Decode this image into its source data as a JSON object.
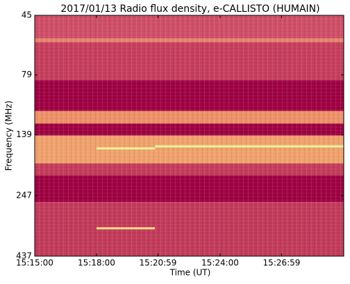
{
  "chart_data": {
    "type": "spectrogram",
    "title": "2017/01/13  Radio flux density, e-CALLISTO (HUMAIN)",
    "x_label": "Time (UT)",
    "y_label": "Frequency (MHz)",
    "xlim": [
      54900,
      55800
    ],
    "xticks": [
      {
        "value": 54900,
        "label": "15:15:00"
      },
      {
        "value": 55080,
        "label": "15:18:00"
      },
      {
        "value": 55259,
        "label": "15:20:59"
      },
      {
        "value": 55440,
        "label": "15:24:00"
      },
      {
        "value": 55619,
        "label": "15:26:59"
      }
    ],
    "ylim": [
      45,
      437
    ],
    "yticks": [
      45,
      79,
      139,
      247,
      437
    ],
    "y_log": true,
    "y_inverted": true,
    "bands": [
      {
        "from": 45,
        "to": 56,
        "color": "#cf4d66"
      },
      {
        "from": 56,
        "to": 58,
        "color": "#e6826a"
      },
      {
        "from": 58,
        "to": 83,
        "color": "#c63d5c"
      },
      {
        "from": 83,
        "to": 111,
        "color": "#9e0142"
      },
      {
        "from": 111,
        "to": 125,
        "color": "#ee9068"
      },
      {
        "from": 125,
        "to": 140,
        "color": "#9e0142"
      },
      {
        "from": 140,
        "to": 182,
        "color": "#f0a06c"
      },
      {
        "from": 182,
        "to": 204,
        "color": "#c43b5b"
      },
      {
        "from": 204,
        "to": 262,
        "color": "#9e0142"
      },
      {
        "from": 262,
        "to": 437,
        "color": "#c23a5a"
      }
    ],
    "bursts": [
      {
        "start": 55080,
        "end": 55250,
        "freq": 158,
        "color": "#e6f598"
      },
      {
        "start": 55250,
        "end": 55800,
        "freq": 155,
        "color": "#e6f598"
      },
      {
        "start": 55080,
        "end": 55250,
        "freq": 336,
        "color": "#fee08b"
      }
    ]
  }
}
